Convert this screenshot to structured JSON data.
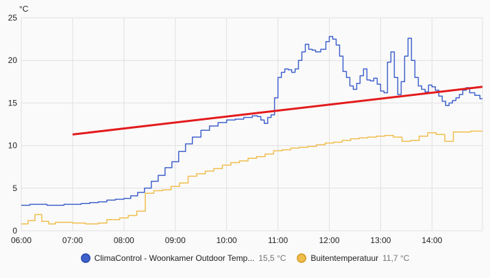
{
  "chart_data": {
    "type": "line",
    "unit": "°C",
    "y_ticks": [
      "0",
      "5",
      "10",
      "15",
      "20",
      "25"
    ],
    "ylim": [
      0,
      25
    ],
    "x_ticks": [
      "06:00",
      "07:00",
      "08:00",
      "09:00",
      "10:00",
      "11:00",
      "12:00",
      "13:00",
      "14:00"
    ],
    "xlim": [
      "06:00",
      "14:59"
    ],
    "grid": true,
    "legend_position": "bottom-center",
    "series": [
      {
        "name": "ClimaControl - Woonkamer Outdoor Temp...",
        "current_value": "15,5 °C",
        "color": "#3f61cc",
        "step": true,
        "x": [
          "06:00",
          "06:10",
          "06:20",
          "06:30",
          "06:40",
          "06:50",
          "07:00",
          "07:10",
          "07:20",
          "07:30",
          "07:40",
          "07:50",
          "08:00",
          "08:08",
          "08:16",
          "08:24",
          "08:32",
          "08:40",
          "08:48",
          "08:56",
          "09:04",
          "09:12",
          "09:20",
          "09:30",
          "09:40",
          "09:50",
          "10:00",
          "10:10",
          "10:20",
          "10:30",
          "10:36",
          "10:40",
          "10:44",
          "10:48",
          "10:52",
          "10:56",
          "11:00",
          "11:04",
          "11:08",
          "11:12",
          "11:16",
          "11:20",
          "11:24",
          "11:28",
          "11:32",
          "11:36",
          "11:40",
          "11:44",
          "11:50",
          "11:56",
          "12:00",
          "12:04",
          "12:08",
          "12:12",
          "12:16",
          "12:20",
          "12:24",
          "12:28",
          "12:32",
          "12:36",
          "12:40",
          "12:44",
          "12:48",
          "12:52",
          "12:56",
          "13:00",
          "13:04",
          "13:08",
          "13:12",
          "13:16",
          "13:20",
          "13:24",
          "13:28",
          "13:32",
          "13:36",
          "13:40",
          "13:44",
          "13:48",
          "13:52",
          "13:56",
          "14:00",
          "14:04",
          "14:08",
          "14:12",
          "14:16",
          "14:20",
          "14:24",
          "14:28",
          "14:32",
          "14:36",
          "14:40",
          "14:44",
          "14:50",
          "14:56"
        ],
        "y": [
          3.0,
          3.1,
          3.1,
          3.0,
          3.0,
          3.1,
          3.1,
          3.2,
          3.3,
          3.4,
          3.6,
          3.7,
          3.8,
          4.1,
          4.5,
          5.0,
          5.8,
          6.5,
          7.4,
          8.1,
          9.3,
          10.2,
          11.0,
          11.8,
          12.3,
          12.7,
          13.0,
          13.1,
          13.3,
          13.5,
          13.4,
          13.0,
          12.6,
          13.3,
          13.6,
          15.6,
          18.0,
          18.6,
          19.0,
          18.9,
          18.6,
          19.0,
          20.0,
          21.0,
          21.9,
          21.3,
          21.2,
          21.0,
          21.3,
          22.2,
          22.8,
          22.5,
          21.8,
          20.5,
          18.7,
          18.0,
          17.0,
          16.6,
          17.3,
          18.2,
          19.0,
          17.7,
          17.6,
          17.9,
          17.2,
          16.4,
          16.2,
          19.8,
          21.0,
          18.0,
          16.0,
          17.5,
          20.5,
          22.6,
          20.0,
          18.0,
          17.0,
          16.6,
          16.3,
          17.1,
          16.9,
          16.5,
          15.8,
          15.2,
          14.7,
          15.0,
          15.3,
          15.6,
          16.0,
          16.5,
          16.8,
          16.2,
          15.9,
          15.5
        ]
      },
      {
        "name": "Buitentemperatuur",
        "current_value": "11,7 °C",
        "color": "#f0bd4c",
        "step": true,
        "x": [
          "06:00",
          "06:08",
          "06:16",
          "06:24",
          "06:32",
          "06:40",
          "06:50",
          "07:00",
          "07:15",
          "07:30",
          "07:40",
          "07:55",
          "08:05",
          "08:15",
          "08:25",
          "08:35",
          "08:45",
          "08:55",
          "09:05",
          "09:15",
          "09:25",
          "09:35",
          "09:45",
          "09:55",
          "10:05",
          "10:15",
          "10:25",
          "10:35",
          "10:45",
          "10:55",
          "11:05",
          "11:15",
          "11:25",
          "11:35",
          "11:45",
          "11:55",
          "12:05",
          "12:15",
          "12:25",
          "12:35",
          "12:45",
          "12:55",
          "13:05",
          "13:15",
          "13:25",
          "13:35",
          "13:45",
          "13:55",
          "14:05",
          "14:15",
          "14:25",
          "14:35",
          "14:45",
          "14:55"
        ],
        "y": [
          0.8,
          1.2,
          1.9,
          1.1,
          0.8,
          1.0,
          1.0,
          0.9,
          0.8,
          0.9,
          1.3,
          1.5,
          1.8,
          2.3,
          4.4,
          4.7,
          4.8,
          5.2,
          5.6,
          6.4,
          6.7,
          7.0,
          7.3,
          7.7,
          8.0,
          8.2,
          8.5,
          8.7,
          9.0,
          9.4,
          9.5,
          9.7,
          9.8,
          9.9,
          10.1,
          10.3,
          10.4,
          10.6,
          10.8,
          10.9,
          11.0,
          11.1,
          11.2,
          11.0,
          10.5,
          10.6,
          11.1,
          11.5,
          11.3,
          10.5,
          11.6,
          11.6,
          11.7,
          11.7
        ]
      },
      {
        "color": "#e31a1c",
        "x": [
          "07:00",
          "14:59"
        ],
        "y": [
          11.3,
          16.9
        ]
      }
    ]
  }
}
